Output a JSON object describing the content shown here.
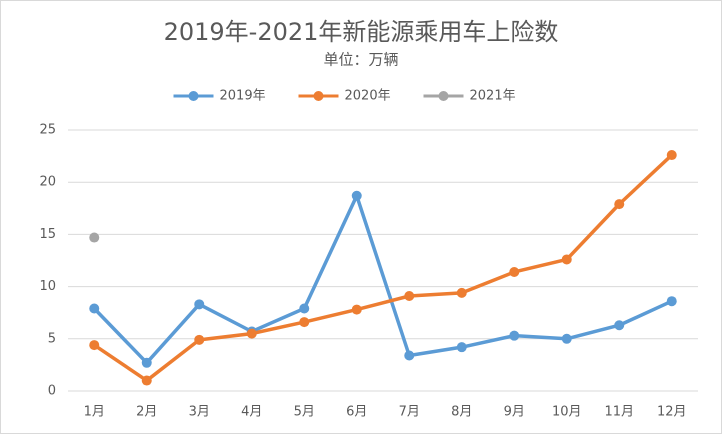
{
  "chart_data": {
    "type": "line",
    "title": "2019年-2021年新能源乘用车上险数",
    "subtitle": "单位：万辆",
    "categories": [
      "1月",
      "2月",
      "3月",
      "4月",
      "5月",
      "6月",
      "7月",
      "8月",
      "9月",
      "10月",
      "11月",
      "12月"
    ],
    "series": [
      {
        "name": "2019年",
        "color": "#5b9bd5",
        "values": [
          7.9,
          2.7,
          8.3,
          5.7,
          7.9,
          18.7,
          3.4,
          4.2,
          5.3,
          5.0,
          6.3,
          8.6
        ]
      },
      {
        "name": "2020年",
        "color": "#ed7d31",
        "values": [
          4.4,
          1.0,
          4.9,
          5.5,
          6.6,
          7.8,
          9.1,
          9.4,
          11.4,
          12.6,
          17.9,
          22.6
        ]
      },
      {
        "name": "2021年",
        "color": "#a5a5a5",
        "values": [
          14.7,
          null,
          null,
          null,
          null,
          null,
          null,
          null,
          null,
          null,
          null,
          null
        ]
      }
    ],
    "ylim": [
      0,
      25
    ],
    "yticks": [
      0,
      5,
      10,
      15,
      20,
      25
    ],
    "grid": true,
    "legend": "top"
  }
}
